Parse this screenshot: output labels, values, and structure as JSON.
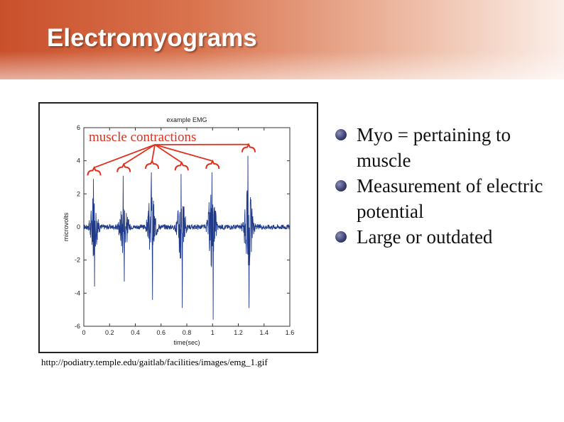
{
  "slide": {
    "title": "Electromyograms",
    "bullets": [
      "Myo = pertaining to muscle",
      "Measurement of electric potential",
      "Large or outdated"
    ],
    "source_url": "http://podiatry.temple.edu/gaitlab/facilities/images/emg_1.gif"
  },
  "colors": {
    "title_gradient_start": "#c9502b",
    "signal": "#1f3a8a",
    "annotation": "#e0301e",
    "bullet": "#3a3d6e"
  },
  "chart_data": {
    "type": "line",
    "title": "example EMG",
    "xlabel": "time(sec)",
    "ylabel": "microvolts",
    "xlim": [
      0,
      1.6
    ],
    "ylim": [
      -6,
      6
    ],
    "xticks": [
      0,
      0.2,
      0.4,
      0.6,
      0.8,
      1,
      1.2,
      1.4,
      1.6
    ],
    "xtick_labels": [
      "0",
      "0.2",
      "0.4",
      "0.6",
      "0.8",
      "1",
      "1.2",
      "1.4",
      "1.6"
    ],
    "yticks": [
      -6,
      -4,
      -2,
      0,
      2,
      4,
      6
    ],
    "ytick_labels": [
      "-6",
      "-4",
      "-2",
      "0",
      "2",
      "4",
      "6"
    ],
    "grid": false,
    "annotation": "muscle contractions",
    "bursts": [
      {
        "center": 0.08,
        "max": 2.9,
        "min": -3.6
      },
      {
        "center": 0.31,
        "max": 3.1,
        "min": -3.3
      },
      {
        "center": 0.53,
        "max": 3.3,
        "min": -4.4
      },
      {
        "center": 0.76,
        "max": 3.2,
        "min": -4.9
      },
      {
        "center": 1.0,
        "max": 3.3,
        "min": -5.6
      },
      {
        "center": 1.28,
        "max": 4.3,
        "min": -4.9
      }
    ],
    "baseline_noise": 0.15
  }
}
